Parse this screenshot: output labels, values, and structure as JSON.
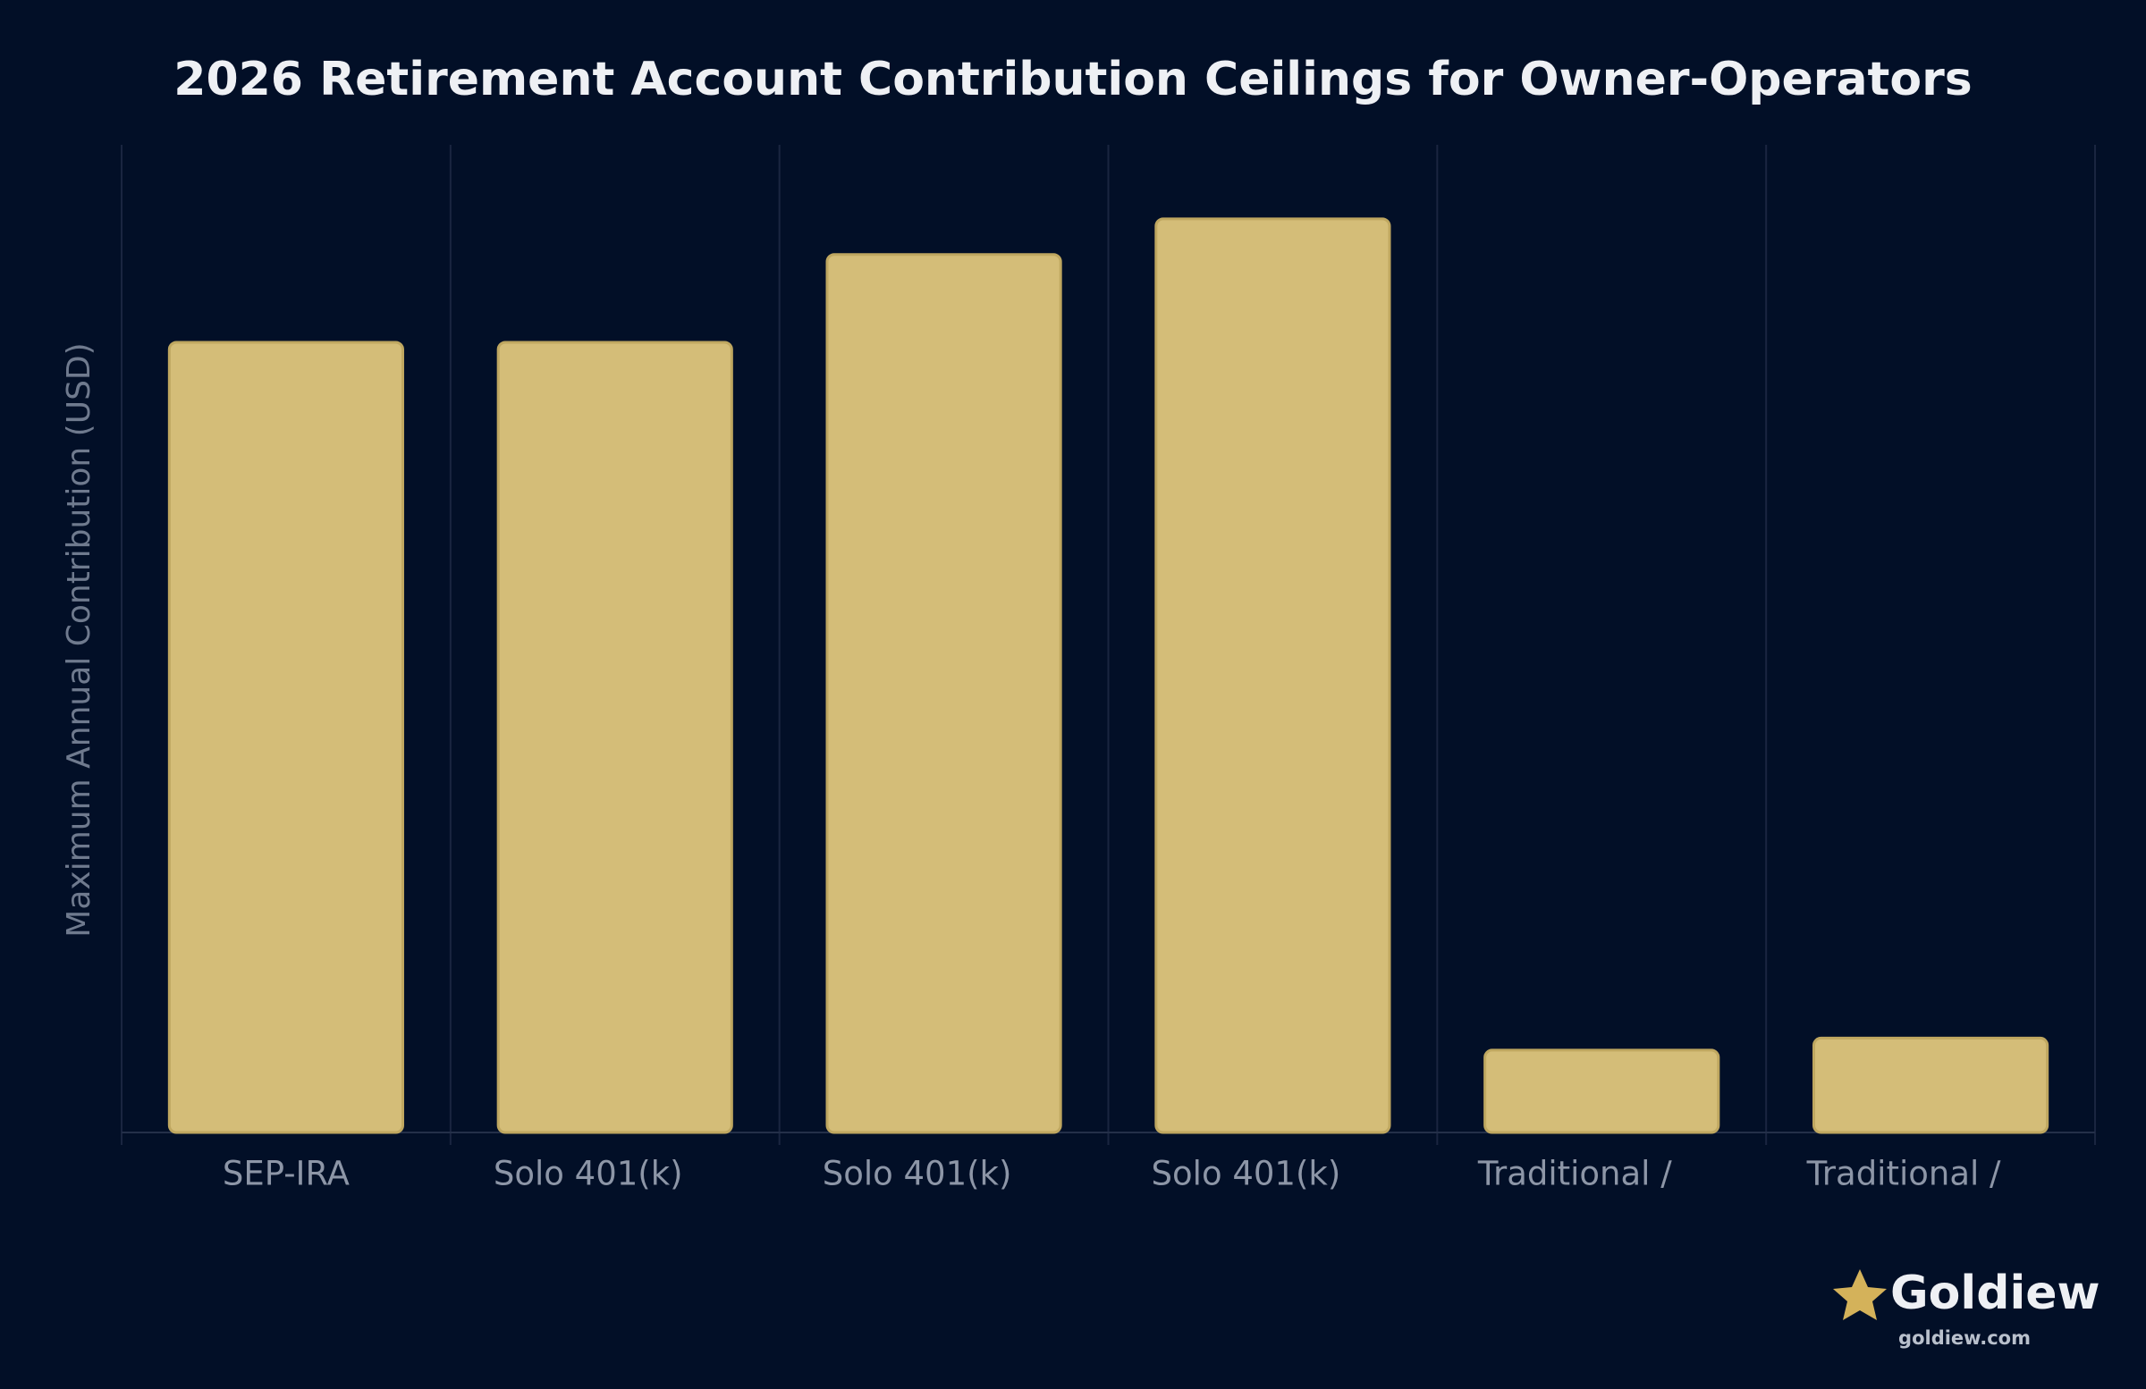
{
  "chart_data": {
    "type": "bar",
    "title": "2026 Retirement Account Contribution Ceilings for Owner-Operators",
    "y_label": "Maximum Annual Contribution (USD)",
    "categories": [
      "SEP-IRA",
      "Solo 401(k)",
      "Solo 401(k)",
      "Solo 401(k)",
      "Traditional /",
      "Traditional /"
    ],
    "values": [
      72000,
      72000,
      80000,
      83250,
      7500,
      8600
    ],
    "color": "#d4bd78",
    "ylim": [
      0,
      90000
    ],
    "grid": true
  },
  "brand": {
    "name": "Goldiew",
    "url": "goldiew.com"
  }
}
